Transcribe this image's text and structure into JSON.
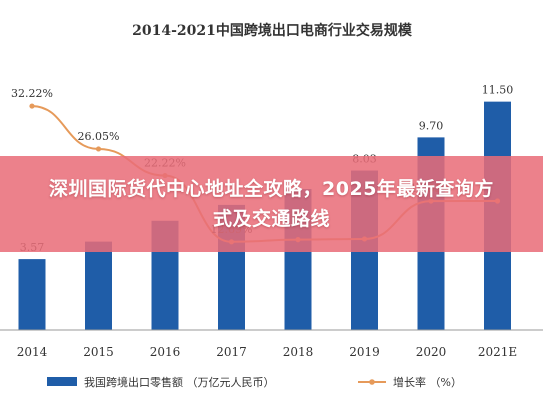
{
  "colors": {
    "bar": "#1f5da8",
    "line": "#e69a5a",
    "axis": "#9a9a9a",
    "text": "#333333",
    "banner": "#e96c78"
  },
  "banner": {
    "text": "深圳国际货代中心地址全攻略，2025年最新查询方式及交通路线"
  },
  "chart_data": {
    "type": "bar",
    "title": "2014-2021中国跨境出口电商行业交易规模",
    "categories": [
      "2014",
      "2015",
      "2016",
      "2017",
      "2018",
      "2019",
      "2020",
      "2021E"
    ],
    "series": [
      {
        "name": "我国跨境出口零售额 （万亿元人民币）",
        "type": "bar",
        "values": [
          3.57,
          4.45,
          5.5,
          6.3,
          7.1,
          8.03,
          9.7,
          11.5
        ],
        "labels": [
          "3.57",
          "",
          "",
          "",
          "",
          "8.03",
          "9.70",
          "11.50"
        ]
      },
      {
        "name": "增长率 （%）",
        "type": "line",
        "values": [
          32.22,
          26.05,
          22.22,
          12.69,
          13.0,
          13.1,
          18.55,
          18.56
        ],
        "labels": [
          "32.22%",
          "26.05%",
          "22.22%",
          "12.69%",
          "",
          "",
          "18.55%",
          ""
        ]
      }
    ],
    "ylim": [
      0,
      14
    ],
    "y2lim": [
      0,
      40
    ],
    "grid": false,
    "legend": "bottom"
  }
}
